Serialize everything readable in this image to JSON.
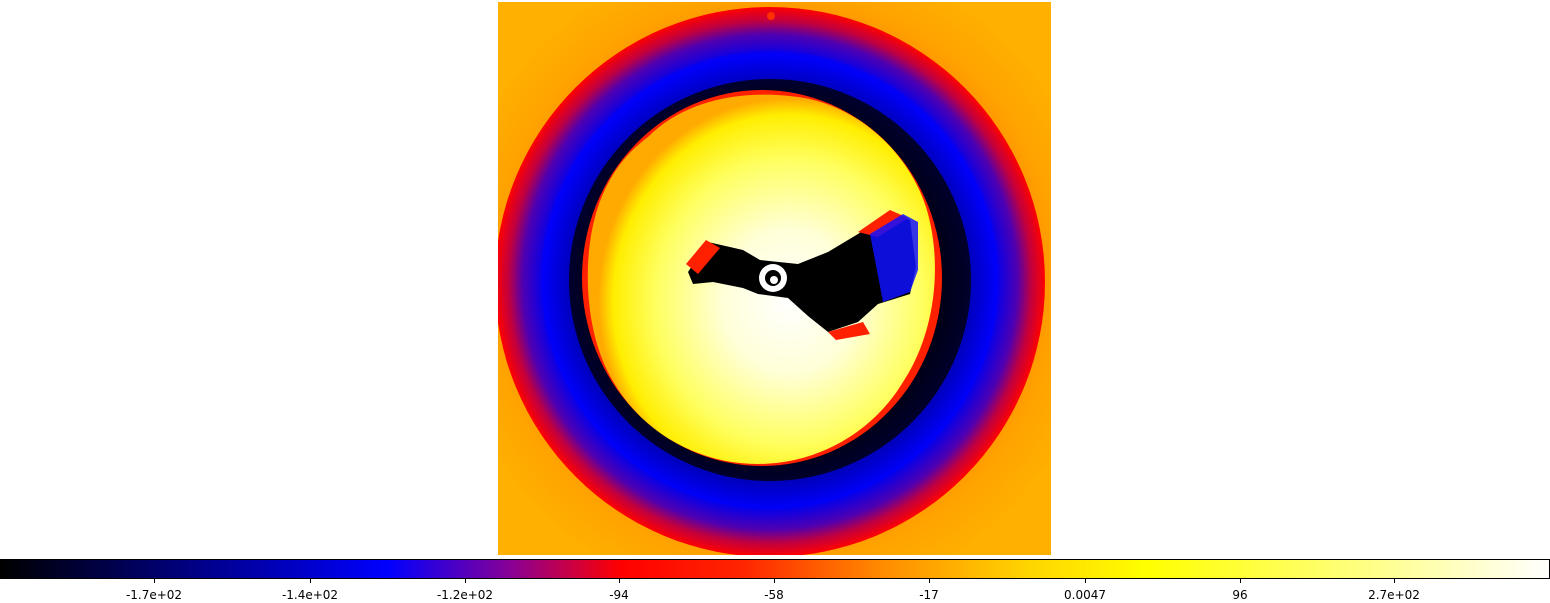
{
  "image_display": {
    "colormap": "heat",
    "colors": {
      "outer_background": "#ffa500",
      "outer_ring": "#ff0000",
      "mid_ring": "#0000ff",
      "dark_ring": "#000022",
      "inner_disk": "#ffff00",
      "core": "#ffffff",
      "central_streak": "#000000"
    }
  },
  "colorbar": {
    "labels": [
      "-1.7e+02",
      "-1.4e+02",
      "-1.2e+02",
      "-94",
      "-58",
      "-17",
      "0.0047",
      "96",
      "2.7e+02"
    ]
  }
}
